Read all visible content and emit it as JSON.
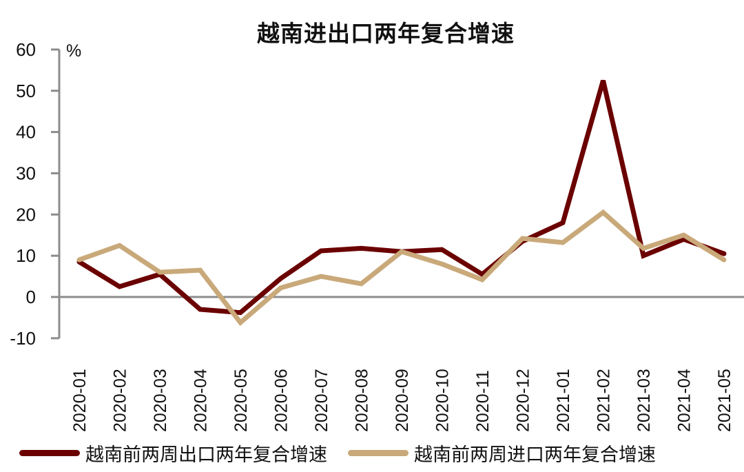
{
  "title": "越南进出口两年复合增速",
  "y_unit": "%",
  "colors": {
    "export": "#6b0000",
    "import": "#c9a97a",
    "axis": "#8c8c8c"
  },
  "legend": [
    {
      "label": "越南前两周出口两年复合增速",
      "color": "#6b0000"
    },
    {
      "label": "越南前两周进口两年复合增速",
      "color": "#c9a97a"
    }
  ],
  "chart_data": {
    "type": "line",
    "title": "越南进出口两年复合增速",
    "xlabel": "",
    "ylabel": "%",
    "ylim": [
      -10,
      60
    ],
    "yticks": [
      60,
      50,
      40,
      30,
      20,
      10,
      0,
      -10
    ],
    "grid": false,
    "legend_position": "bottom",
    "categories": [
      "2020-01",
      "2020-02",
      "2020-03",
      "2020-04",
      "2020-05",
      "2020-06",
      "2020-07",
      "2020-08",
      "2020-09",
      "2020-10",
      "2020-11",
      "2020-12",
      "2021-01",
      "2021-02",
      "2021-03",
      "2021-04",
      "2021-05"
    ],
    "series": [
      {
        "name": "越南前两周出口两年复合增速",
        "color": "#6b0000",
        "values": [
          8.5,
          2.5,
          5.5,
          -3.0,
          -3.8,
          4.5,
          11.2,
          11.8,
          11.0,
          11.5,
          5.5,
          13.5,
          18.0,
          52.5,
          10.0,
          14.0,
          10.5
        ]
      },
      {
        "name": "越南前两周进口两年复合增速",
        "color": "#c9a97a",
        "values": [
          9.0,
          12.5,
          6.0,
          6.5,
          -6.2,
          2.2,
          5.0,
          3.2,
          11.0,
          8.0,
          4.2,
          14.2,
          13.2,
          20.5,
          11.8,
          15.0,
          9.0
        ]
      }
    ]
  }
}
